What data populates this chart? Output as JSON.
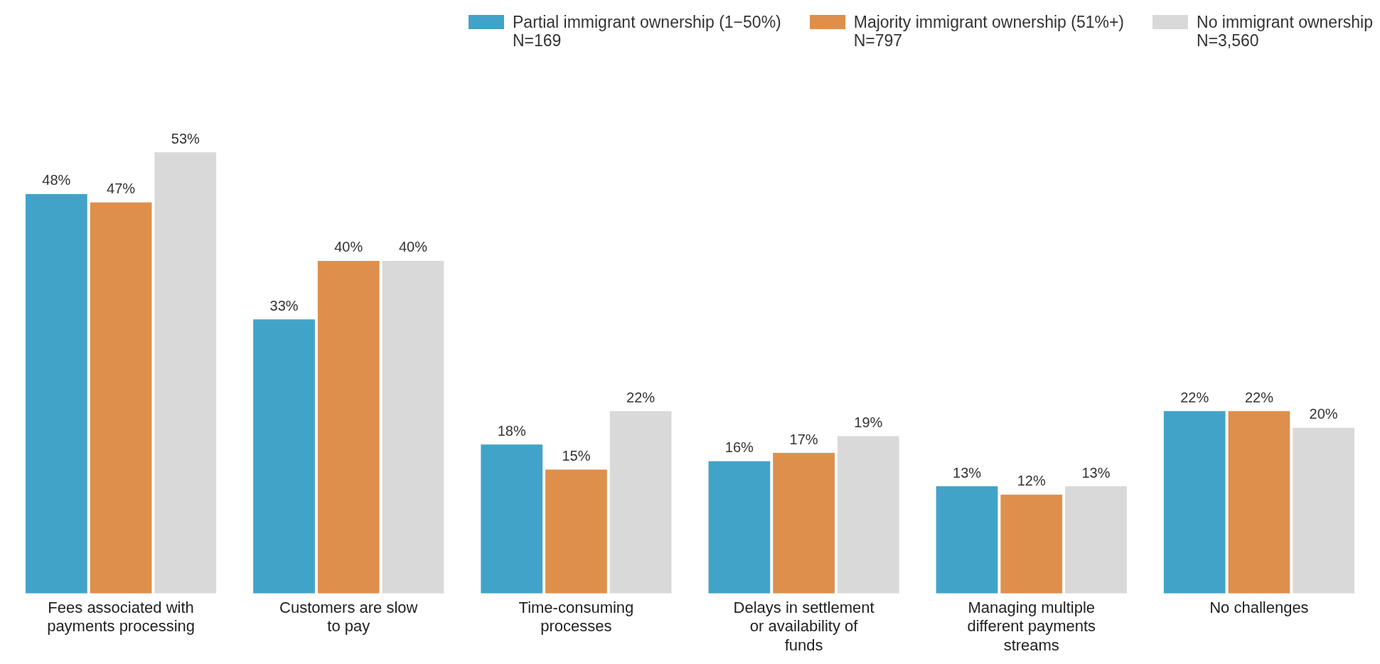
{
  "chart_data": {
    "type": "bar",
    "categories": [
      "Fees associated with payments processing",
      "Customers are slow to pay",
      "Time-consuming processes",
      "Delays in settlement or availability of funds",
      "Managing multiple different payments streams",
      "No challenges"
    ],
    "series": [
      {
        "name": "Partial immigrant ownership (1−50%)\nN=169",
        "color": "#42a3c8",
        "values": [
          48,
          33,
          18,
          16,
          13,
          22
        ],
        "value_labels": [
          "48%",
          "33%",
          "18%",
          "16%",
          "13%",
          "22%"
        ]
      },
      {
        "name": "Majority immigrant ownership (51%+)\nN=797",
        "color": "#de8f4c",
        "values": [
          47,
          40,
          15,
          17,
          12,
          22
        ],
        "value_labels": [
          "47%",
          "40%",
          "15%",
          "17%",
          "12%",
          "22%"
        ]
      },
      {
        "name": "No immigrant ownership\nN=3,560",
        "color": "#d9d9d9",
        "values": [
          53,
          40,
          22,
          19,
          13,
          20
        ],
        "value_labels": [
          "53%",
          "40%",
          "22%",
          "19%",
          "13%",
          "20%"
        ]
      }
    ],
    "legend": "top right",
    "grid": false
  }
}
